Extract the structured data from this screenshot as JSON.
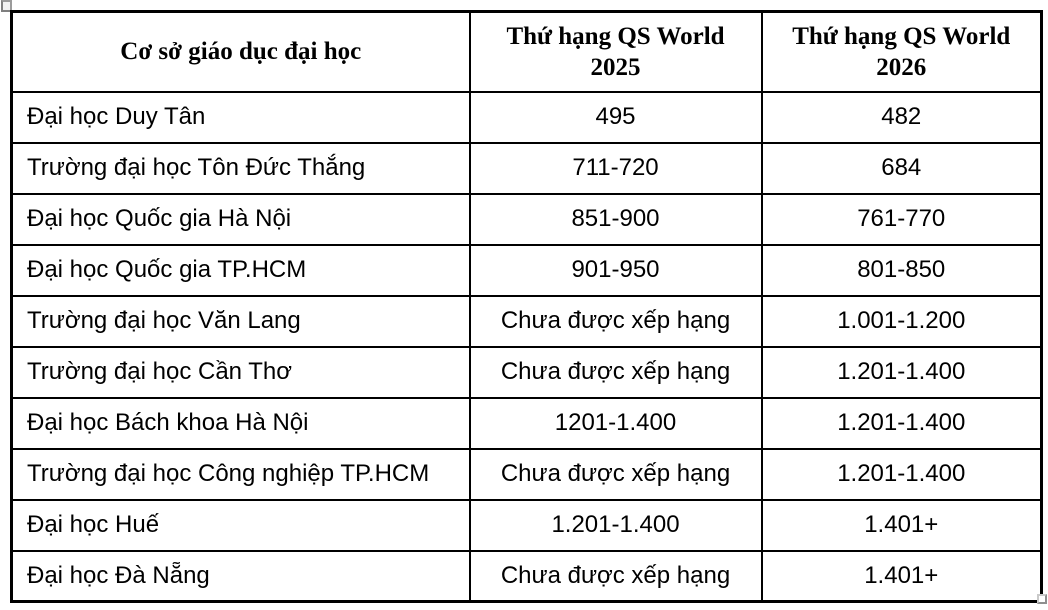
{
  "table": {
    "columns": [
      {
        "label": "Cơ sở giáo dục đại học"
      },
      {
        "label": "Thứ hạng QS World 2025"
      },
      {
        "label": "Thứ hạng QS World 2026"
      }
    ],
    "rows": [
      {
        "institution": "Đại học Duy Tân",
        "rank_2025": "495",
        "rank_2026": "482"
      },
      {
        "institution": "Trường đại học Tôn Đức Thắng",
        "rank_2025": "711-720",
        "rank_2026": "684"
      },
      {
        "institution": "Đại học Quốc gia Hà Nội",
        "rank_2025": "851-900",
        "rank_2026": "761-770"
      },
      {
        "institution": "Đại học Quốc gia TP.HCM",
        "rank_2025": "901-950",
        "rank_2026": "801-850"
      },
      {
        "institution": "Trường đại học Văn Lang",
        "rank_2025": "Chưa được xếp hạng",
        "rank_2026": "1.001-1.200"
      },
      {
        "institution": "Trường đại học Cần Thơ",
        "rank_2025": "Chưa được xếp hạng",
        "rank_2026": "1.201-1.400"
      },
      {
        "institution": "Đại học Bách khoa Hà Nội",
        "rank_2025": "1201-1.400",
        "rank_2026": "1.201-1.400"
      },
      {
        "institution": "Trường đại học Công nghiệp TP.HCM",
        "rank_2025": "Chưa được xếp hạng",
        "rank_2026": "1.201-1.400"
      },
      {
        "institution": "Đại học Huế",
        "rank_2025": "1.201-1.400",
        "rank_2026": "1.401+"
      },
      {
        "institution": "Đại học Đà Nẵng",
        "rank_2025": "Chưa được xếp hạng",
        "rank_2026": "1.401+"
      }
    ]
  },
  "colors": {
    "border": "#000000",
    "text": "#000000",
    "background": "#ffffff",
    "handle_gray": "#8f8f8f"
  }
}
